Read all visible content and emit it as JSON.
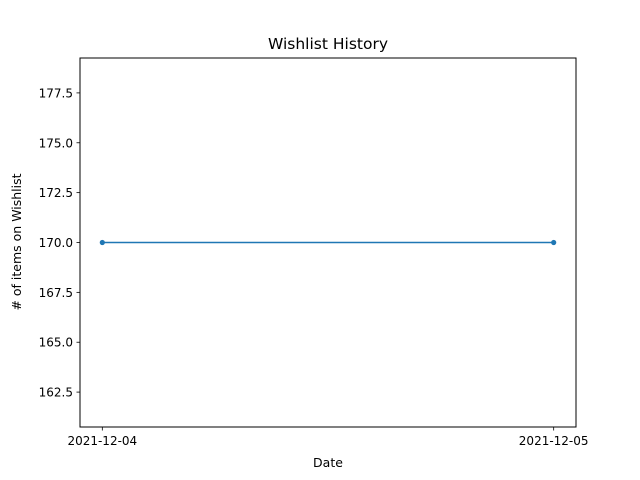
{
  "chart_data": {
    "type": "line",
    "title": "Wishlist History",
    "xlabel": "Date",
    "ylabel": "# of items on Wishlist",
    "x": [
      "2021-12-04",
      "2021-12-05"
    ],
    "series": [
      {
        "values": [
          170.0,
          170.0
        ],
        "color": "#1f77b4",
        "marker": "dot"
      }
    ],
    "ylim": [
      160.75,
      179.25
    ],
    "yticks": [
      162.5,
      165.0,
      167.5,
      170.0,
      172.5,
      175.0,
      177.5
    ],
    "ytick_labels": [
      "162.5",
      "165.0",
      "167.5",
      "170.0",
      "172.5",
      "175.0",
      "177.5"
    ],
    "xticks": [
      "2021-12-04",
      "2021-12-05"
    ],
    "grid": false,
    "legend": "none"
  }
}
